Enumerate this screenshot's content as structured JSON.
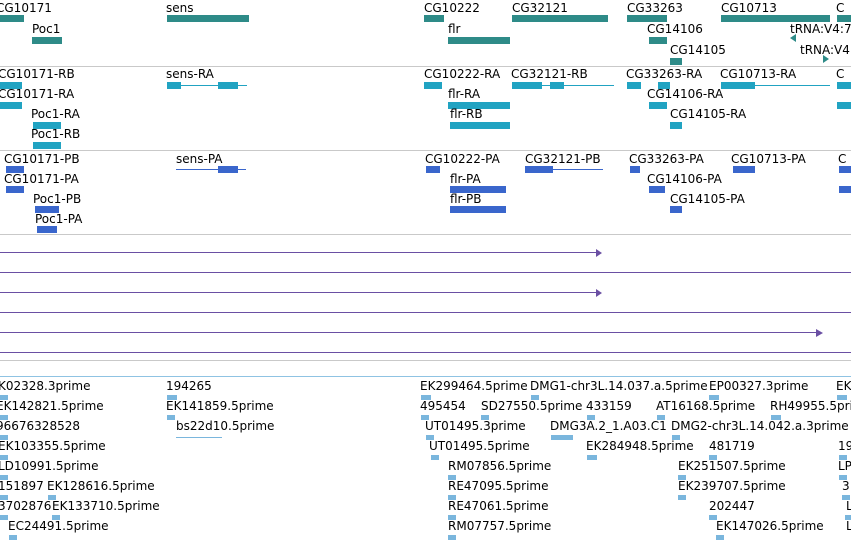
{
  "colors": {
    "gene": "#2e8b88",
    "transcript_rna": "#21a3c2",
    "transcript_protein": "#3a66cc",
    "alignment": "#6a4fa3",
    "est": "#7ab6dd",
    "separator": "#c9c9c9"
  },
  "genes": {
    "labels": [
      "CG10171",
      "sens",
      "CG10222",
      "CG32121",
      "CG33263",
      "CG10713",
      "Poc1",
      "flr",
      "CG14106",
      "CG14105",
      "tRNA:V4:7",
      "tRNA:V4:"
    ]
  },
  "rna_transcripts": {
    "labels": [
      "CG10171-RB",
      "CG10171-RA",
      "Poc1-RA",
      "Poc1-RB",
      "sens-RA",
      "CG10222-RA",
      "flr-RA",
      "flr-RB",
      "CG32121-RB",
      "CG33263-RA",
      "CG14106-RA",
      "CG14105-RA",
      "CG10713-RA"
    ]
  },
  "protein_transcripts": {
    "labels": [
      "CG10171-PB",
      "CG10171-PA",
      "Poc1-PB",
      "Poc1-PA",
      "sens-PA",
      "CG10222-PA",
      "flr-PA",
      "flr-PB",
      "CG32121-PB",
      "CG33263-PA",
      "CG14106-PA",
      "CG14105-PA",
      "CG10713-PA"
    ]
  },
  "ests": {
    "labels": [
      "K02328.3prime",
      "194265",
      "EK299464.5prime",
      "DMG1-chr3L.14.037.a.5prime",
      "EP00327.3prime",
      "EK",
      "EK142821.5prime",
      "EK141859.5prime",
      "495454",
      "SD27550.5prime",
      "433159",
      "AT16168.5prime",
      "RH49955.5prime",
      "96676328528",
      "bs22d10.5prime",
      "UT01495.3prime",
      "DMG3A.2_1.A03.C1",
      "DMG2-chr3L.14.042.a.3prime",
      "EK103355.5prime",
      "UT01495.5prime",
      "EK284948.5prime",
      "481719",
      "19",
      "LD10991.5prime",
      "RM07856.5prime",
      "EK251507.5prime",
      "LP",
      "151897",
      "EK128616.5prime",
      "RE47095.5prime",
      "EK239707.5prime",
      "3",
      "3702876",
      "EK133710.5prime",
      "RE47061.5prime",
      "202447",
      "L",
      "EC24491.5prime",
      "RM07757.5prime",
      "EK147026.5prime",
      "L"
    ]
  }
}
